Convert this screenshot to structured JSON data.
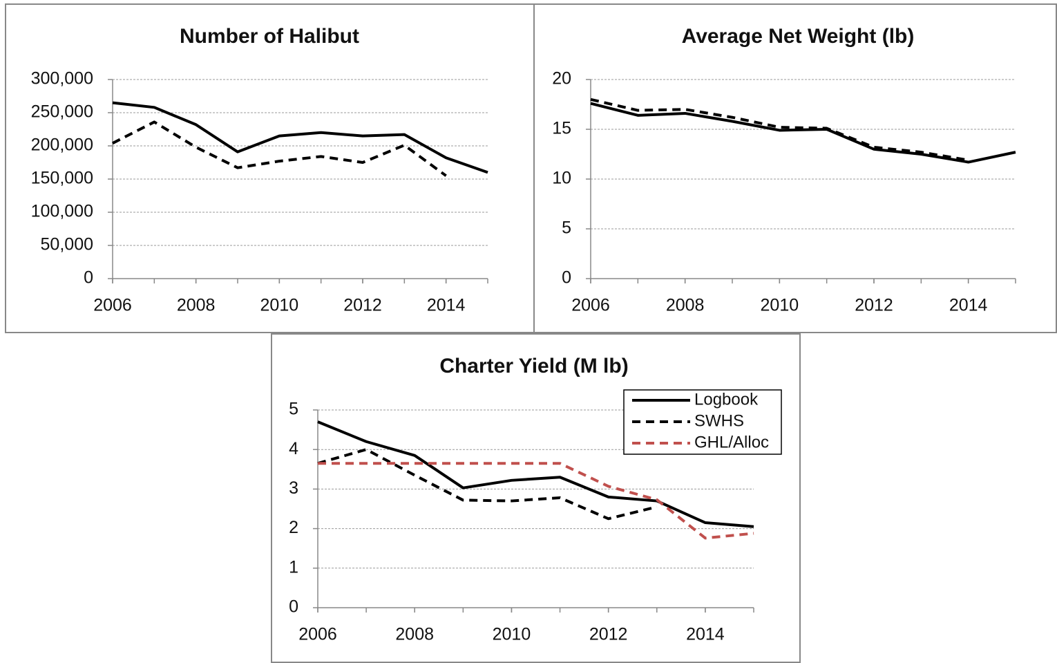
{
  "chart_data": [
    {
      "type": "line",
      "title": "Number of Halibut",
      "x": [
        2006,
        2007,
        2008,
        2009,
        2010,
        2011,
        2012,
        2013,
        2014,
        2015
      ],
      "xlim": [
        2006,
        2015
      ],
      "xticks": [
        2006,
        2008,
        2010,
        2012,
        2014
      ],
      "ylim": [
        0,
        300000
      ],
      "yticks": [
        0,
        {
          "value": 50000,
          "label": "50,000"
        },
        {
          "value": 100000,
          "label": "100,000"
        },
        {
          "value": 150000,
          "label": "150,000"
        },
        {
          "value": 200000,
          "label": "200,000"
        },
        {
          "value": 250000,
          "label": "250,000"
        },
        {
          "value": 300000,
          "label": "300,000"
        }
      ],
      "grid": true,
      "legend": false,
      "series": [
        {
          "color": "#000000",
          "style": "solid",
          "values": [
            265000,
            258000,
            232000,
            191000,
            215000,
            220000,
            215000,
            217000,
            182000,
            160000
          ]
        },
        {
          "color": "#000000",
          "style": "dashed",
          "values": [
            204000,
            236000,
            198000,
            167000,
            177000,
            184000,
            175000,
            201000,
            155000,
            null
          ]
        }
      ]
    },
    {
      "type": "line",
      "title": "Average Net Weight (lb)",
      "x": [
        2006,
        2007,
        2008,
        2009,
        2010,
        2011,
        2012,
        2013,
        2014,
        2015
      ],
      "xlim": [
        2006,
        2015
      ],
      "xticks": [
        2006,
        2008,
        2010,
        2012,
        2014
      ],
      "ylim": [
        0,
        20
      ],
      "yticks": [
        0,
        5,
        10,
        15,
        20
      ],
      "grid": true,
      "legend": false,
      "series": [
        {
          "color": "#000000",
          "style": "solid",
          "values": [
            17.6,
            16.4,
            16.6,
            15.8,
            14.9,
            15.0,
            13.0,
            12.5,
            11.7,
            12.7
          ]
        },
        {
          "color": "#000000",
          "style": "dashed",
          "values": [
            18.0,
            16.9,
            17.0,
            16.2,
            15.2,
            15.1,
            13.2,
            12.7,
            11.9,
            null
          ]
        }
      ]
    },
    {
      "type": "line",
      "title": "Charter Yield (M lb)",
      "x": [
        2006,
        2007,
        2008,
        2009,
        2010,
        2011,
        2012,
        2013,
        2014,
        2015
      ],
      "xlim": [
        2006,
        2015
      ],
      "xticks": [
        2006,
        2008,
        2010,
        2012,
        2014
      ],
      "ylim": [
        0,
        5
      ],
      "yticks": [
        0,
        1,
        2,
        3,
        4,
        5
      ],
      "grid": true,
      "legend": "upper right",
      "series": [
        {
          "name": "Logbook",
          "color": "#000000",
          "style": "solid",
          "values": [
            4.7,
            4.2,
            3.85,
            3.03,
            3.22,
            3.3,
            2.8,
            2.7,
            2.15,
            2.05
          ]
        },
        {
          "name": "SWHS",
          "color": "#000000",
          "style": "dashed",
          "values": [
            3.65,
            4.0,
            3.35,
            2.72,
            2.7,
            2.78,
            2.25,
            2.55,
            null,
            null
          ]
        },
        {
          "name": "GHL/Alloc",
          "color": "#c0504d",
          "style": "dashed",
          "values": [
            3.65,
            3.65,
            3.65,
            3.65,
            3.65,
            3.65,
            3.07,
            2.73,
            1.76,
            1.88
          ]
        }
      ]
    }
  ]
}
